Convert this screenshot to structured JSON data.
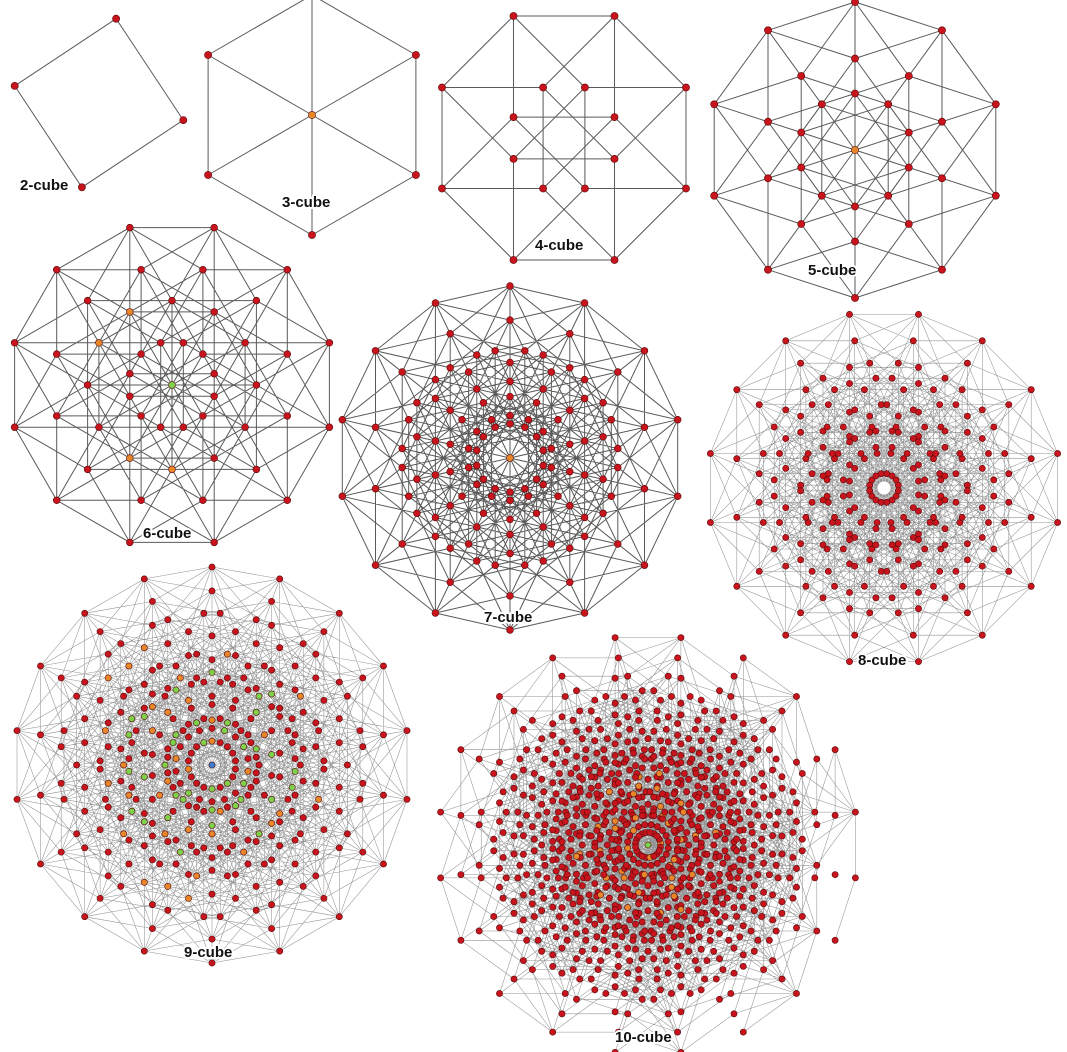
{
  "colors": {
    "vertex": "#c8141c",
    "vertex_orange": "#e8872a",
    "vertex_green": "#7ed14a",
    "vertex_blue": "#3a7fd0",
    "vertex_white": "#ffffff",
    "edge": "#5a5a5a",
    "background": "#ffffff"
  },
  "cubes": [
    {
      "n": 2,
      "label": "2-cube",
      "center_color": "none"
    },
    {
      "n": 3,
      "label": "3-cube",
      "center_color": "orange"
    },
    {
      "n": 4,
      "label": "4-cube",
      "center_color": "none"
    },
    {
      "n": 5,
      "label": "5-cube",
      "center_color": "orange"
    },
    {
      "n": 6,
      "label": "6-cube",
      "center_color": "green"
    },
    {
      "n": 7,
      "label": "7-cube",
      "center_color": "orange"
    },
    {
      "n": 8,
      "label": "8-cube",
      "center_color": "white"
    },
    {
      "n": 9,
      "label": "9-cube",
      "center_color": "blue"
    },
    {
      "n": 10,
      "label": "10-cube",
      "center_color": "green"
    }
  ]
}
